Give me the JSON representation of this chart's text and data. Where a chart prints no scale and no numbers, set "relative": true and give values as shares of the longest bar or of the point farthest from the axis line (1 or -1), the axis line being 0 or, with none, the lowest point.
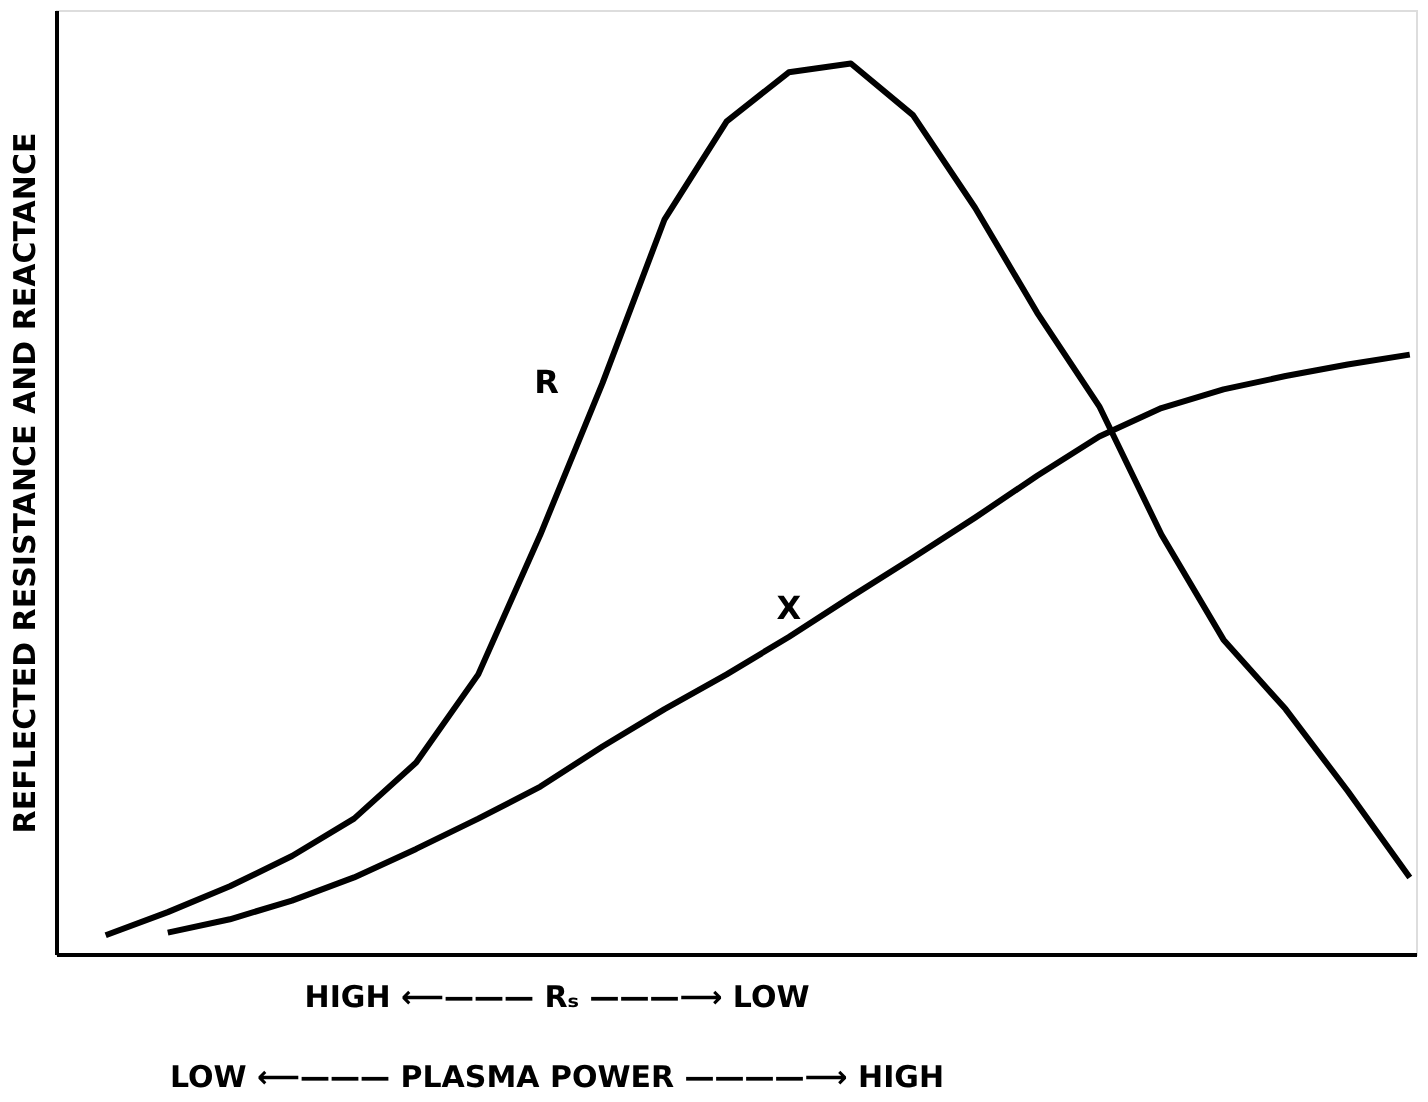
{
  "chart_data": {
    "type": "line",
    "relative": true,
    "ylabel": "REFLECTED RESISTANCE AND REACTANCE",
    "xlabel": "HIGH ⟵——— Rₛ ———⟶ LOW",
    "annotations": [
      "LOW ⟵——— PLASMA POWER ————⟶ HIGH"
    ],
    "categories": [
      null,
      null,
      null,
      null,
      null,
      null,
      null,
      null,
      null,
      null,
      null,
      null,
      null,
      null,
      null,
      null,
      null,
      null,
      null,
      null,
      null,
      null
    ],
    "marker": "none",
    "line_style": "solid",
    "series": [
      {
        "name": "R",
        "color": "#000000",
        "values": [
          0.021,
          0.047,
          0.076,
          0.11,
          0.152,
          0.215,
          0.314,
          0.471,
          0.641,
          0.825,
          0.935,
          0.99,
          1,
          0.942,
          0.838,
          0.72,
          0.615,
          0.471,
          0.353,
          0.275,
          0.183,
          0.086
        ]
      },
      {
        "name": "X",
        "color": "#000000",
        "values": [
          null,
          0.024,
          0.039,
          0.06,
          0.086,
          0.118,
          0.152,
          0.188,
          0.233,
          0.275,
          0.314,
          0.356,
          0.401,
          0.445,
          0.49,
          0.537,
          0.581,
          0.613,
          0.634,
          0.649,
          0.662,
          0.673
        ]
      }
    ]
  }
}
